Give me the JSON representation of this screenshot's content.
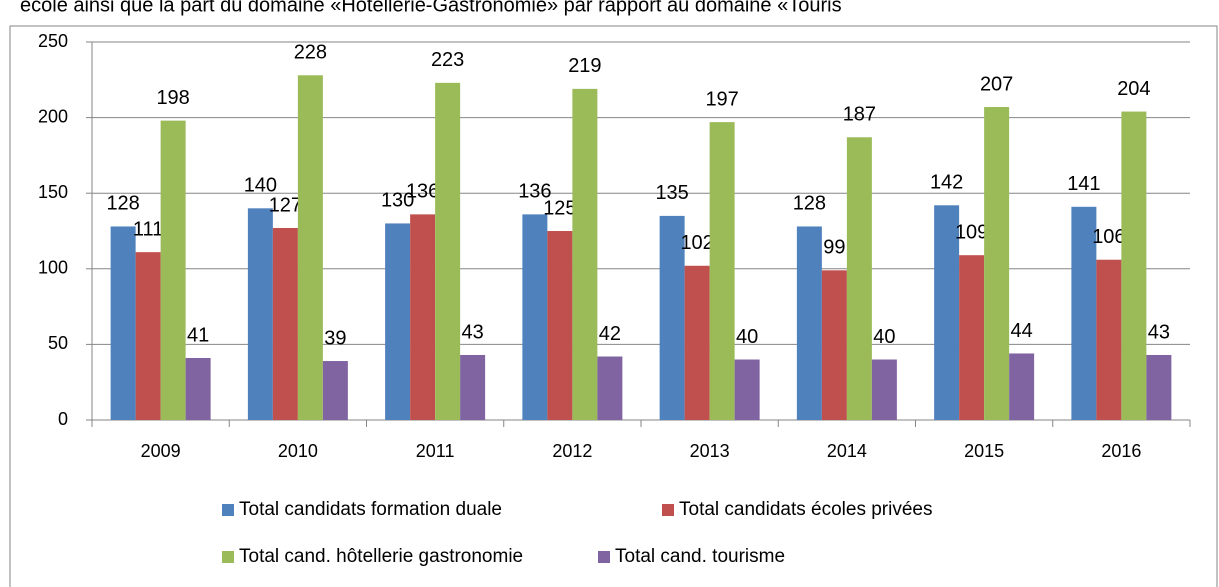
{
  "caption": "école ainsi que la part du domaine «Hôtellerie-Gastronomie» par rapport au domaine «Touris",
  "chart_data": {
    "type": "bar",
    "categories": [
      "2009",
      "2010",
      "2011",
      "2012",
      "2013",
      "2014",
      "2015",
      "2016"
    ],
    "series": [
      {
        "name": "Total candidats formation duale",
        "color": "#4f81bd",
        "values": [
          128,
          140,
          130,
          136,
          135,
          128,
          142,
          141
        ]
      },
      {
        "name": "Total candidats écoles privées",
        "color": "#c0504d",
        "values": [
          111,
          127,
          136,
          125,
          102,
          99,
          109,
          106
        ]
      },
      {
        "name": "Total cand. hôtellerie gastronomie",
        "color": "#9bbb59",
        "values": [
          198,
          228,
          223,
          219,
          197,
          187,
          207,
          204
        ]
      },
      {
        "name": "Total cand. tourisme",
        "color": "#8064a2",
        "values": [
          41,
          39,
          43,
          42,
          40,
          40,
          44,
          43
        ]
      }
    ],
    "ylim": [
      0,
      250
    ],
    "yticks": [
      0,
      50,
      100,
      150,
      200,
      250
    ],
    "grid": true,
    "legend": "bottom"
  }
}
